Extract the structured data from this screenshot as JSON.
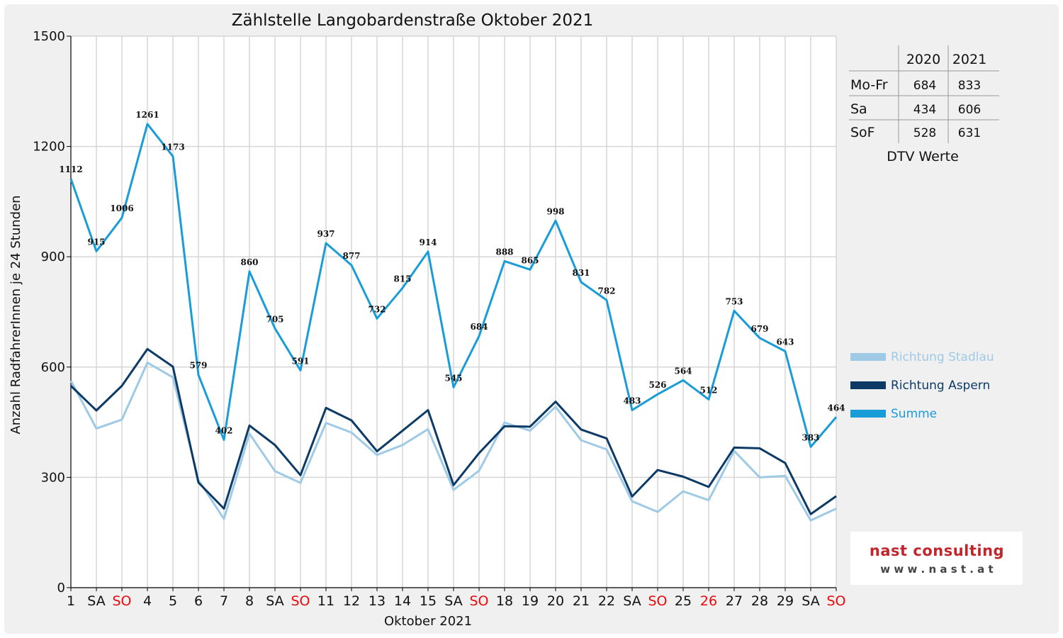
{
  "chart_data": {
    "type": "line",
    "title": "Zählstelle Langobardenstraße Oktober 2021",
    "xlabel": "Oktober 2021",
    "ylabel": "Anzahl RadfahrerInnen je 24 Stunden",
    "ylim": [
      0,
      1500
    ],
    "yticks": [
      "0",
      "300",
      "600",
      "900",
      "1200",
      "1500"
    ],
    "grid": true,
    "legend_position": "right",
    "categories": [
      "1",
      "SA",
      "SO",
      "4",
      "5",
      "6",
      "7",
      "8",
      "SA",
      "SO",
      "11",
      "12",
      "13",
      "14",
      "15",
      "SA",
      "SO",
      "18",
      "19",
      "20",
      "21",
      "22",
      "SA",
      "SO",
      "25",
      "26",
      "27",
      "28",
      "29",
      "SA",
      "SO"
    ],
    "red_categories": [
      2,
      9,
      16,
      23,
      25,
      30
    ],
    "series": [
      {
        "name": "Richtung Stadlau",
        "color": "#9ecae6",
        "values": [
          563,
          433,
          457,
          612,
          572,
          293,
          187,
          419,
          317,
          285,
          448,
          422,
          361,
          388,
          431,
          266,
          318,
          449,
          427,
          492,
          401,
          376,
          235,
          206,
          262,
          238,
          372,
          300,
          304,
          183,
          215
        ]
      },
      {
        "name": "Richtung Aspern",
        "color": "#0d3b66",
        "values": [
          549,
          482,
          549,
          649,
          601,
          286,
          215,
          441,
          388,
          306,
          489,
          455,
          371,
          427,
          483,
          279,
          366,
          439,
          438,
          506,
          430,
          406,
          248,
          320,
          302,
          274,
          381,
          379,
          339,
          200,
          249
        ]
      },
      {
        "name": "Summe",
        "color": "#1a9cd8",
        "values": [
          1112,
          915,
          1006,
          1261,
          1173,
          579,
          402,
          860,
          705,
          591,
          937,
          877,
          732,
          815,
          914,
          545,
          684,
          888,
          865,
          998,
          831,
          782,
          483,
          526,
          564,
          512,
          753,
          679,
          643,
          383,
          464
        ]
      }
    ]
  },
  "dtv_table": {
    "caption": "DTV Werte",
    "headers": [
      "",
      "2020",
      "2021"
    ],
    "rows": [
      [
        "Mo-Fr",
        "684",
        "833"
      ],
      [
        "Sa",
        "434",
        "606"
      ],
      [
        "SoF",
        "528",
        "631"
      ]
    ]
  },
  "logo": {
    "line1": "nast consulting",
    "line2": "w w w . n a s t . a t"
  },
  "colors": {
    "weekend_red": "#e8090d",
    "grid": "#d6d6d6",
    "plot_bg": "#ffffff",
    "frame_bg": "#f0f0f0"
  }
}
